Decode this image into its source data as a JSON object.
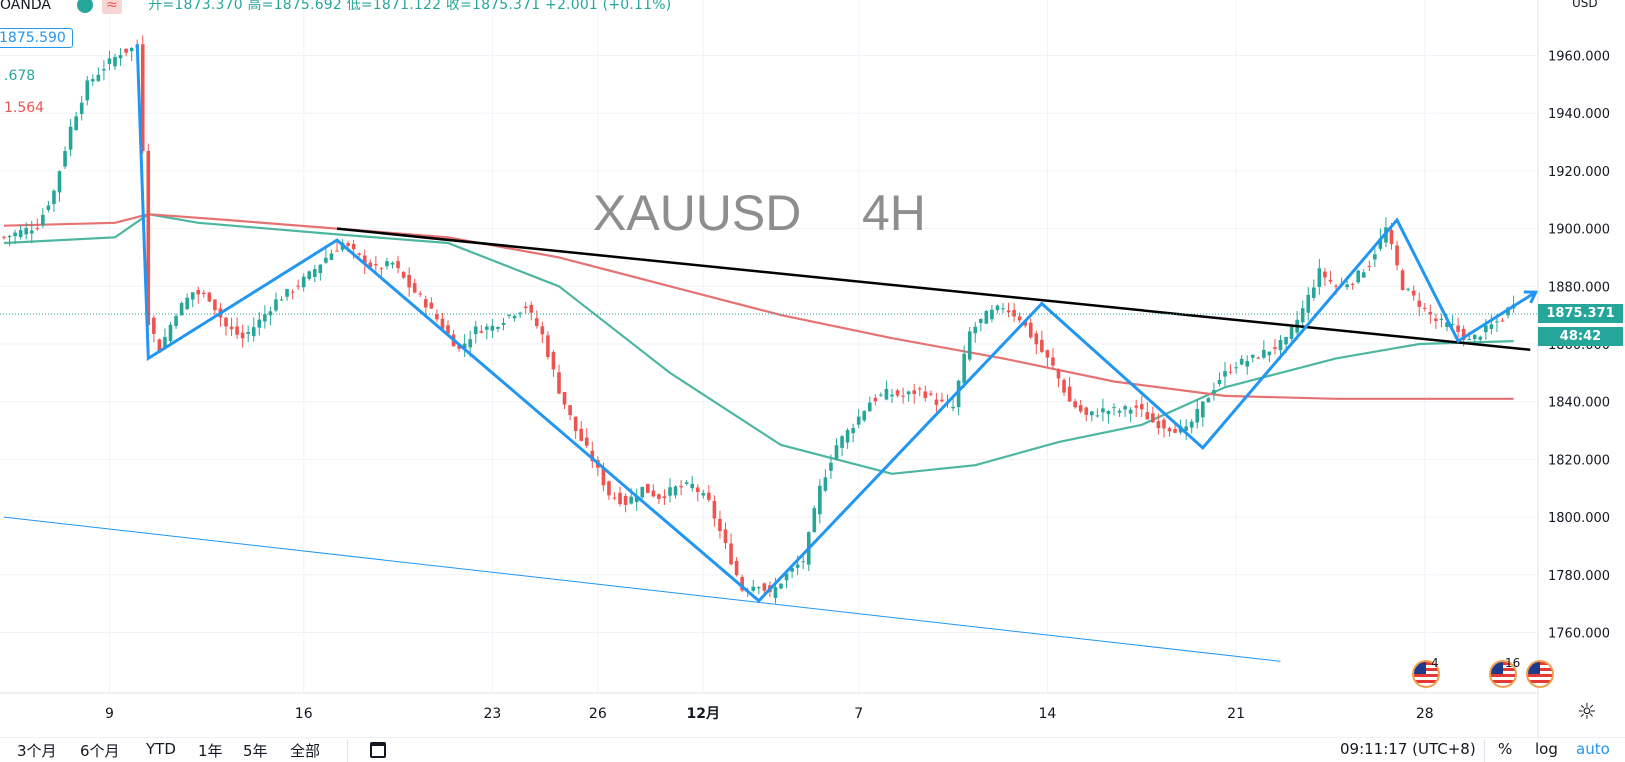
{
  "header": {
    "source": "OANDA",
    "ohlc_text": "开=1873.370 高=1875.692 低=1871.122 收=1875.371 +2.001 (+0.11%)"
  },
  "indicators": {
    "box_value": "1875.590",
    "teal_value": ".678",
    "red_value": "1.564"
  },
  "watermark": {
    "symbol": "XAUUSD",
    "interval": "4H"
  },
  "price_axis": {
    "currency": "USD",
    "ticks": [
      "1960.000",
      "1940.000",
      "1920.000",
      "1900.000",
      "1880.000",
      "1860.000",
      "1840.000",
      "1820.000",
      "1800.000",
      "1780.000",
      "1760.000"
    ],
    "current_price": "1875.371",
    "countdown": "48:42"
  },
  "time_axis": {
    "ticks": [
      "9",
      "16",
      "23",
      "26",
      "12月",
      "7",
      "14",
      "21",
      "28"
    ]
  },
  "events": [
    {
      "icon": "us-flag-icon",
      "count": "4"
    },
    {
      "icon": "us-flag-icon",
      "count": "16"
    },
    {
      "icon": "us-flag-icon",
      "count": ""
    }
  ],
  "bottom_toolbar": {
    "ranges": [
      "3个月",
      "6个月",
      "YTD",
      "1年",
      "5年",
      "全部"
    ],
    "clock": "09:11:17 (UTC+8)",
    "percent": "%",
    "log": "log",
    "auto": "auto"
  },
  "colors": {
    "up": "#26a69a",
    "down": "#ef5350",
    "ma_teal": "#4db6a0",
    "ma_red": "#e57373",
    "wave": "#2196f3",
    "trend": "#000000"
  },
  "chart_data": {
    "type": "candlestick",
    "symbol": "XAUUSD",
    "interval": "4H",
    "ylim": [
      1745,
      1970
    ],
    "close_path": [
      [
        0,
        1897
      ],
      [
        3,
        1899
      ],
      [
        6,
        1901
      ],
      [
        9,
        1913
      ],
      [
        12,
        1935
      ],
      [
        15,
        1950
      ],
      [
        18,
        1956
      ],
      [
        21,
        1961
      ],
      [
        24,
        1963
      ],
      [
        25,
        1928
      ],
      [
        26,
        1868
      ],
      [
        28,
        1858
      ],
      [
        31,
        1871
      ],
      [
        34,
        1878
      ],
      [
        37,
        1876
      ],
      [
        40,
        1866
      ],
      [
        43,
        1862
      ],
      [
        46,
        1868
      ],
      [
        49,
        1875
      ],
      [
        52,
        1879
      ],
      [
        55,
        1884
      ],
      [
        58,
        1890
      ],
      [
        61,
        1895
      ],
      [
        64,
        1890
      ],
      [
        67,
        1886
      ],
      [
        70,
        1888
      ],
      [
        73,
        1880
      ],
      [
        76,
        1874
      ],
      [
        79,
        1866
      ],
      [
        82,
        1858
      ],
      [
        85,
        1865
      ],
      [
        88,
        1866
      ],
      [
        91,
        1870
      ],
      [
        94,
        1873
      ],
      [
        97,
        1863
      ],
      [
        100,
        1844
      ],
      [
        103,
        1830
      ],
      [
        106,
        1820
      ],
      [
        109,
        1808
      ],
      [
        112,
        1805
      ],
      [
        115,
        1810
      ],
      [
        118,
        1807
      ],
      [
        121,
        1810
      ],
      [
        124,
        1811
      ],
      [
        127,
        1805
      ],
      [
        130,
        1790
      ],
      [
        133,
        1775
      ],
      [
        136,
        1777
      ],
      [
        138,
        1773
      ],
      [
        141,
        1780
      ],
      [
        144,
        1785
      ],
      [
        147,
        1810
      ],
      [
        150,
        1825
      ],
      [
        153,
        1832
      ],
      [
        156,
        1840
      ],
      [
        159,
        1843
      ],
      [
        162,
        1842
      ],
      [
        165,
        1844
      ],
      [
        168,
        1840
      ],
      [
        171,
        1838
      ],
      [
        174,
        1864
      ],
      [
        177,
        1870
      ],
      [
        180,
        1873
      ],
      [
        183,
        1869
      ],
      [
        186,
        1860
      ],
      [
        189,
        1852
      ],
      [
        192,
        1840
      ],
      [
        195,
        1835
      ],
      [
        198,
        1837
      ],
      [
        201,
        1837
      ],
      [
        204,
        1838
      ],
      [
        207,
        1833
      ],
      [
        210,
        1831
      ],
      [
        213,
        1830
      ],
      [
        216,
        1839
      ],
      [
        219,
        1848
      ],
      [
        222,
        1853
      ],
      [
        225,
        1855
      ],
      [
        228,
        1858
      ],
      [
        231,
        1861
      ],
      [
        234,
        1872
      ],
      [
        237,
        1885
      ],
      [
        240,
        1880
      ],
      [
        243,
        1882
      ],
      [
        246,
        1888
      ],
      [
        249,
        1900
      ],
      [
        252,
        1880
      ],
      [
        255,
        1874
      ],
      [
        258,
        1868
      ],
      [
        261,
        1866
      ],
      [
        264,
        1861
      ],
      [
        267,
        1865
      ],
      [
        270,
        1869
      ],
      [
        272,
        1875
      ]
    ],
    "ma_teal": [
      [
        0,
        1895
      ],
      [
        20,
        1897
      ],
      [
        26,
        1905
      ],
      [
        35,
        1902
      ],
      [
        60,
        1898
      ],
      [
        80,
        1895
      ],
      [
        100,
        1880
      ],
      [
        120,
        1850
      ],
      [
        140,
        1825
      ],
      [
        160,
        1815
      ],
      [
        175,
        1818
      ],
      [
        190,
        1826
      ],
      [
        205,
        1832
      ],
      [
        220,
        1845
      ],
      [
        240,
        1855
      ],
      [
        255,
        1860
      ],
      [
        272,
        1861
      ]
    ],
    "ma_red": [
      [
        0,
        1901
      ],
      [
        20,
        1902
      ],
      [
        26,
        1905
      ],
      [
        40,
        1903
      ],
      [
        60,
        1900
      ],
      [
        80,
        1897
      ],
      [
        100,
        1890
      ],
      [
        120,
        1880
      ],
      [
        140,
        1870
      ],
      [
        160,
        1862
      ],
      [
        180,
        1855
      ],
      [
        200,
        1847
      ],
      [
        220,
        1842
      ],
      [
        240,
        1841
      ],
      [
        272,
        1841
      ]
    ],
    "trend_line": [
      [
        60,
        1900
      ],
      [
        275,
        1858
      ]
    ],
    "channel_line": [
      [
        0,
        1800
      ],
      [
        230,
        1750
      ]
    ],
    "wave_line": [
      [
        24,
        1964
      ],
      [
        26,
        1855
      ],
      [
        60,
        1896
      ],
      [
        136,
        1771
      ],
      [
        187,
        1874
      ],
      [
        216,
        1824
      ],
      [
        251,
        1903
      ],
      [
        262,
        1861
      ],
      [
        276,
        1878
      ]
    ]
  }
}
